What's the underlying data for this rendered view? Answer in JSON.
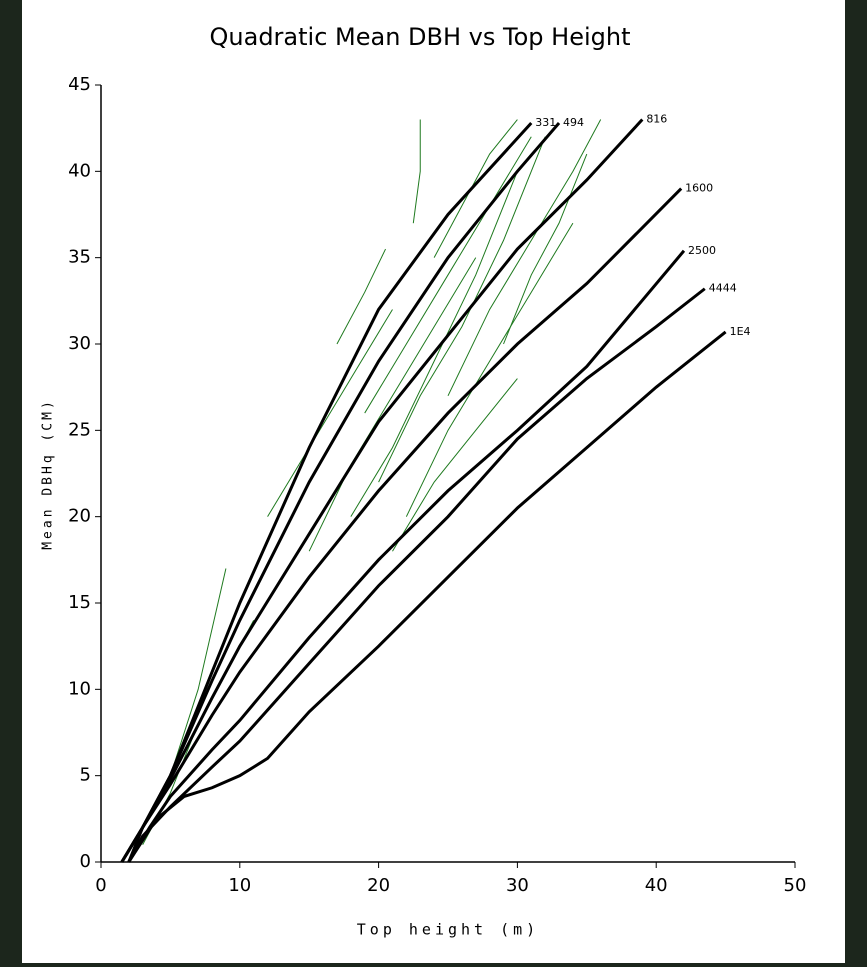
{
  "chart_data": {
    "type": "line",
    "title": "Quadratic Mean DBH vs Top Height",
    "x_label": "Top height (m)",
    "y_label": "Mean DBHq (CM)",
    "xlim": [
      0,
      50
    ],
    "xticks": [
      0,
      10,
      20,
      30,
      40,
      50
    ],
    "ylim": [
      0,
      45
    ],
    "yticks": [
      0,
      5,
      10,
      15,
      20,
      25,
      30,
      35,
      40,
      45
    ],
    "series": [
      {
        "name": "331",
        "color": "#000000",
        "x": [
          1.5,
          3,
          5,
          8,
          10,
          15,
          20,
          25,
          31
        ],
        "values": [
          0,
          2,
          5,
          11,
          15,
          24,
          32,
          37.5,
          42.8
        ]
      },
      {
        "name": "494",
        "color": "#000000",
        "x": [
          1.5,
          3,
          5,
          8,
          10,
          15,
          20,
          25,
          30,
          33
        ],
        "values": [
          0,
          2,
          5,
          10.5,
          14,
          22,
          29,
          35,
          40,
          42.8
        ]
      },
      {
        "name": "816",
        "color": "#000000",
        "x": [
          1.5,
          3,
          5,
          8,
          10,
          15,
          20,
          25,
          30,
          35,
          39
        ],
        "values": [
          0,
          2,
          4.8,
          9.5,
          12.5,
          19,
          25.5,
          30.5,
          35.5,
          39.5,
          43
        ]
      },
      {
        "name": "1600",
        "color": "#000000",
        "x": [
          2,
          3,
          5,
          8,
          10,
          15,
          20,
          25,
          30,
          35,
          41.8
        ],
        "values": [
          0,
          2,
          4.5,
          8.5,
          11,
          16.5,
          21.5,
          26,
          30,
          33.5,
          39
        ]
      },
      {
        "name": "2500",
        "color": "#000000",
        "x": [
          2,
          3.5,
          5,
          8,
          10,
          15,
          20,
          25,
          30,
          35,
          42
        ],
        "values": [
          0,
          2,
          3.8,
          6.5,
          8.2,
          13,
          17.5,
          21.5,
          25,
          28.7,
          35.4
        ]
      },
      {
        "name": "4444",
        "color": "#000000",
        "x": [
          2,
          3,
          5,
          8,
          10,
          15,
          20,
          25,
          30,
          35,
          40,
          43.5
        ],
        "values": [
          0,
          1.5,
          3.2,
          5.5,
          7,
          11.5,
          16,
          20,
          24.5,
          28,
          31,
          33.2
        ]
      },
      {
        "name": "1E4",
        "color": "#000000",
        "x": [
          2,
          4,
          6,
          8,
          10,
          12,
          15,
          20,
          25,
          30,
          35,
          40,
          45
        ],
        "values": [
          0,
          2.5,
          3.8,
          4.3,
          5,
          6,
          8.7,
          12.5,
          16.5,
          20.5,
          24,
          27.5,
          30.7
        ]
      },
      {
        "color": "#1f7a1f",
        "x": [
          5,
          7,
          9
        ],
        "values": [
          5,
          10,
          17
        ]
      },
      {
        "color": "#1f7a1f",
        "x": [
          17,
          19,
          20.5
        ],
        "values": [
          30,
          33,
          35.5
        ]
      },
      {
        "color": "#1f7a1f",
        "x": [
          22.5,
          23,
          23
        ],
        "values": [
          37,
          40,
          43
        ]
      },
      {
        "color": "#1f7a1f",
        "x": [
          15,
          18,
          21,
          24,
          27
        ],
        "values": [
          18,
          23,
          27,
          31,
          35
        ]
      },
      {
        "color": "#1f7a1f",
        "x": [
          18,
          21,
          24,
          27,
          30
        ],
        "values": [
          20,
          24,
          29,
          34,
          40
        ]
      },
      {
        "color": "#1f7a1f",
        "x": [
          20,
          23,
          26,
          29,
          32
        ],
        "values": [
          22,
          27,
          31,
          36,
          42
        ]
      },
      {
        "color": "#1f7a1f",
        "x": [
          22,
          25,
          28,
          31,
          34
        ],
        "values": [
          20,
          25,
          29,
          33,
          37
        ]
      },
      {
        "color": "#1f7a1f",
        "x": [
          25,
          28,
          31,
          34,
          36
        ],
        "values": [
          27,
          32,
          36,
          40,
          43
        ]
      },
      {
        "color": "#1f7a1f",
        "x": [
          12,
          15,
          18,
          21
        ],
        "values": [
          20,
          24,
          28,
          32
        ]
      },
      {
        "color": "#1f7a1f",
        "x": [
          3,
          5,
          7,
          9,
          11
        ],
        "values": [
          1,
          4,
          8,
          11,
          14
        ]
      },
      {
        "color": "#1f7a1f",
        "x": [
          19,
          22,
          25,
          28,
          31
        ],
        "values": [
          26,
          30,
          34,
          38,
          42
        ]
      },
      {
        "color": "#1f7a1f",
        "x": [
          29,
          31,
          33,
          35
        ],
        "values": [
          30,
          34,
          37,
          41
        ]
      },
      {
        "color": "#1f7a1f",
        "x": [
          21,
          24,
          27,
          30
        ],
        "values": [
          18,
          22,
          25,
          28
        ]
      },
      {
        "color": "#1f7a1f",
        "x": [
          24,
          26,
          28,
          30
        ],
        "values": [
          35,
          38,
          41,
          43
        ]
      }
    ]
  }
}
